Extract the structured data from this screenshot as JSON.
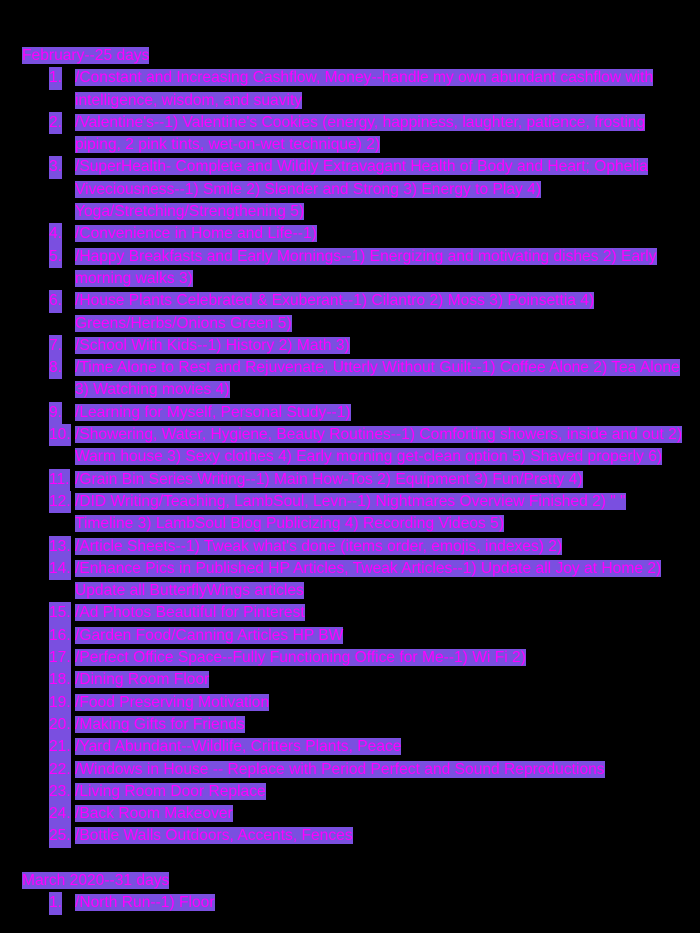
{
  "sections": [
    {
      "heading": "February--25 days",
      "items": [
        {
          "num": "1.",
          "text": "/Constant and Increasing Cashflow, Money--handle my own abundant cashflow with intelligence, wisdom, and suavity"
        },
        {
          "num": "2.",
          "text": "/Valentine's--1) Valentine's Cookies (energy, happiness, laughter, patience, frosting piping, 2 pink tints, wet-on-wet technique) 2)"
        },
        {
          "num": "3.",
          "text": "/SuperHealth- Complete and Wildly Extravagant Health of Body and Heart; Ophelia Viveciousness--1) Smile 2) Slender and Strong 3) Energy to Play 4) Yoga/Stretching/Strengthening 5)"
        },
        {
          "num": "4.",
          "text": "/Convenience in Home and Life--1)"
        },
        {
          "num": "5.",
          "text": "/Happy Breakfasts and Early Mornings--1) Energizing and motivating dishes 2) Early morning walks 3)"
        },
        {
          "num": "6.",
          "text": "/House Plants Celebrated & Exuberant--1) Cilantro 2) Moss 3) Poinsettia 4) Greens/Herbs/Onions Green 5)"
        },
        {
          "num": "7.",
          "text": "/School With Kids--1) History 2) Math 3)"
        },
        {
          "num": "8.",
          "text": "/Time Alone to Rest and Rejuvenate, Utterly Without Guilt--1) Coffee Alone 2) Tea Alone 3) Watching movies 4)"
        },
        {
          "num": "9.",
          "text": "/Learning for Myself, Personal Study--1)"
        },
        {
          "num": "10.",
          "text": "/Showering, Water, Hygiene, Beauty Routines--1) Comforting showers, inside and out 2) Warm house 3) Sexy clothes 4) Early morning get-clean option 5) Shaved properly 6)"
        },
        {
          "num": "11.",
          "text": "/Grain Bin Series Writing--1) Main How-Tos 2) Equipment 3) Fun/Pretty 4)"
        },
        {
          "num": "12.",
          "text": "/DID Writing/Teaching, LambSoul, Levn--1) Nightmares Overview Finished 2) \" \" Timeline 3) LambSoul Blog Publicizing 4) Recording Videos 5)"
        },
        {
          "num": "13.",
          "text": "/Article Sheets--1) Tweak what's done (items order, emojis, indexes) 2)"
        },
        {
          "num": "14.",
          "text": "/Enhance Pics in Published HP Articles, Tweak Articles--1) Update all Joy at Home 2) Update all ButterflyWings articles"
        },
        {
          "num": "15.",
          "text": "/Ad Photos Beautiful for Pinterest"
        },
        {
          "num": "16.",
          "text": "/Garden Food/Canning Articles HP BW"
        },
        {
          "num": "17.",
          "text": "/Perfect Office Space--Fully Functioning Office for Me--1) Wi Fi 2)"
        },
        {
          "num": "18.",
          "text": "/Dining Room Floor"
        },
        {
          "num": "19.",
          "text": "/Food Preserving Motivation"
        },
        {
          "num": "20.",
          "text": "/Making Gifts for Friends"
        },
        {
          "num": "21.",
          "text": "/Yard Abundant--Wildlife, Critters Plants, Peace"
        },
        {
          "num": "22.",
          "text": "/Windows in House -- Replace with Period Perfect and Sound Reproductions"
        },
        {
          "num": "23.",
          "text": "/Living Room Door Replace"
        },
        {
          "num": "24.",
          "text": "/Back Room Makeover"
        },
        {
          "num": "25.",
          "text": "/Bottle Walls Outdoors, Accents, Fences"
        }
      ]
    },
    {
      "heading": "March 2020--31 days",
      "items": [
        {
          "num": "1.",
          "text": "/North Run--1) Floor"
        }
      ]
    }
  ],
  "colors": {
    "background": "#000000",
    "text": "#ff00ff",
    "highlight": "#7a4fe0"
  }
}
